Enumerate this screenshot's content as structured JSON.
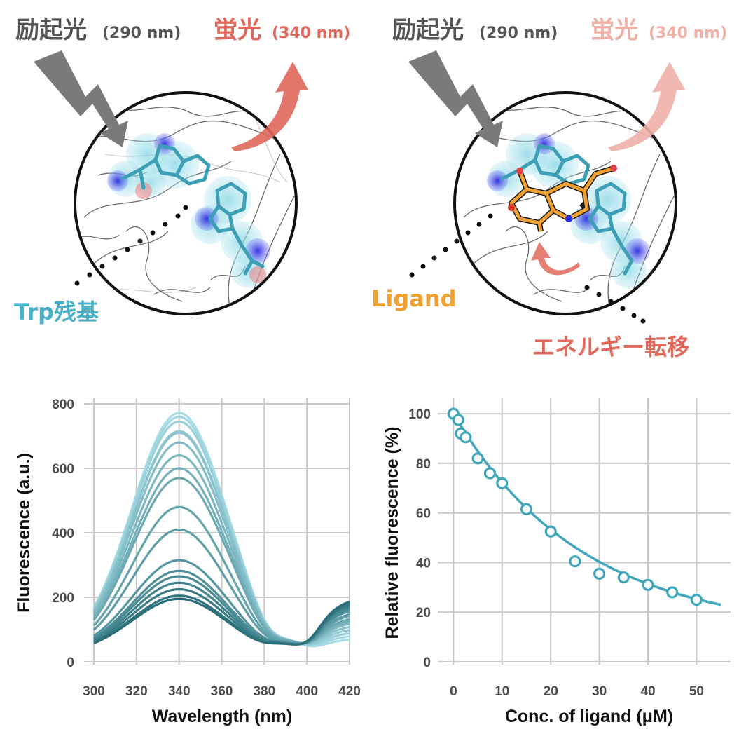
{
  "illustration": {
    "left": {
      "excitation_label": "励起光",
      "excitation_wavelength": "(290 nm)",
      "emission_label": "蛍光",
      "emission_wavelength": "(340 nm)",
      "residue_label": "Trp残基"
    },
    "right": {
      "excitation_label": "励起光",
      "excitation_wavelength": "(290 nm)",
      "emission_label": "蛍光",
      "emission_wavelength": "(340 nm)",
      "ligand_label": "Ligand",
      "transfer_label": "エネルギー転移"
    },
    "colors": {
      "excitation": "#7a7a7a",
      "emission": "#e0675a",
      "emission_faded": "#f0b0a8",
      "trp": "#4ab0c8",
      "ligand": "#f0a030",
      "nitrogen": "#3535e0",
      "oxygen": "#e05050"
    }
  },
  "chart_data": [
    {
      "type": "line",
      "xlabel": "Wavelength (nm)",
      "ylabel": "Fluorescence (a.u.)",
      "xlim": [
        300,
        420
      ],
      "ylim": [
        0,
        800
      ],
      "xticks": [
        300,
        320,
        340,
        360,
        380,
        400,
        420
      ],
      "yticks": [
        0,
        200,
        400,
        600,
        800
      ],
      "grid": true,
      "peak_wavelength": 340,
      "peak_values": [
        772,
        760,
        745,
        715,
        710,
        680,
        640,
        600,
        570,
        480,
        410,
        315,
        282,
        265,
        245,
        225,
        205,
        195
      ],
      "tail_values_at_420": [
        70,
        80,
        90,
        100,
        110,
        120,
        125,
        130,
        135,
        145,
        150,
        160,
        165,
        170,
        175,
        180,
        185,
        190
      ],
      "color_light": "#a8dde6",
      "color_dark": "#2a6f7a"
    },
    {
      "type": "scatter",
      "xlabel": "Conc. of ligand (μM)",
      "ylabel": "Relative fluorescence (%)",
      "xlim": [
        -1.5,
        57
      ],
      "ylim": [
        0,
        104
      ],
      "xticks": [
        0,
        10,
        20,
        30,
        40,
        50
      ],
      "yticks": [
        0,
        20,
        40,
        60,
        80,
        100
      ],
      "grid": true,
      "points": {
        "x": [
          0,
          1,
          1.5,
          2.5,
          5,
          7.5,
          10,
          15,
          20,
          25,
          30,
          35,
          40,
          45,
          50
        ],
        "y": [
          100,
          97.5,
          92,
          90.5,
          82,
          76,
          72,
          61.5,
          52.5,
          40.5,
          35.5,
          34,
          31,
          28,
          25
        ]
      },
      "fit_x_range": [
        0,
        55
      ],
      "fit_end_y": 23,
      "color": "#3fa6bb"
    }
  ]
}
